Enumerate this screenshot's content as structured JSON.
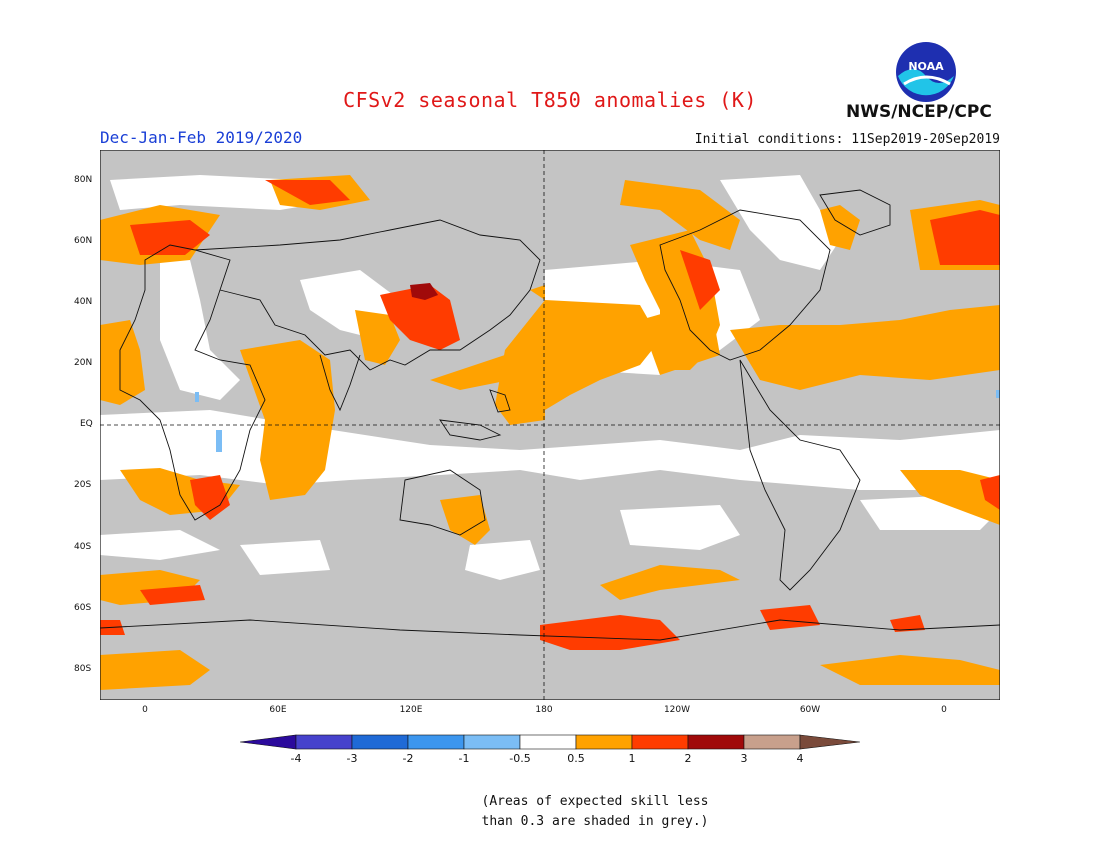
{
  "title": "CFSv2 seasonal T850 anomalies (K)",
  "period": "Dec-Jan-Feb 2019/2020",
  "initial_conditions": "Initial conditions: 11Sep2019-20Sep2019",
  "agency": "NWS/NCEP/CPC",
  "logo_text": "NOAA",
  "lat_labels": [
    "80N",
    "60N",
    "40N",
    "20N",
    "EQ",
    "20S",
    "40S",
    "60S",
    "80S"
  ],
  "lon_labels": [
    "0",
    "60E",
    "120E",
    "180",
    "120W",
    "60W",
    "0"
  ],
  "colorbar": {
    "labels": [
      "-4",
      "-3",
      "-2",
      "-1",
      "-0.5",
      "0.5",
      "1",
      "2",
      "3",
      "4"
    ],
    "colors": [
      "#2b0a9c",
      "#4642cc",
      "#1f6ad6",
      "#3c96ee",
      "#7bbdf5",
      "#ffffff",
      "#ffa200",
      "#ff3c00",
      "#a00a0a",
      "#c8a08c",
      "#7a4a3a"
    ]
  },
  "legend": {
    "skill_color": "#c4c4c4",
    "warm_1": "#ffa200",
    "warm_2": "#ff3c00",
    "warm_3": "#a00a0a",
    "cool_1": "#7bbdf5"
  },
  "note_line1": "(Areas of expected skill less",
  "note_line2": "than 0.3 are shaded in grey.)"
}
